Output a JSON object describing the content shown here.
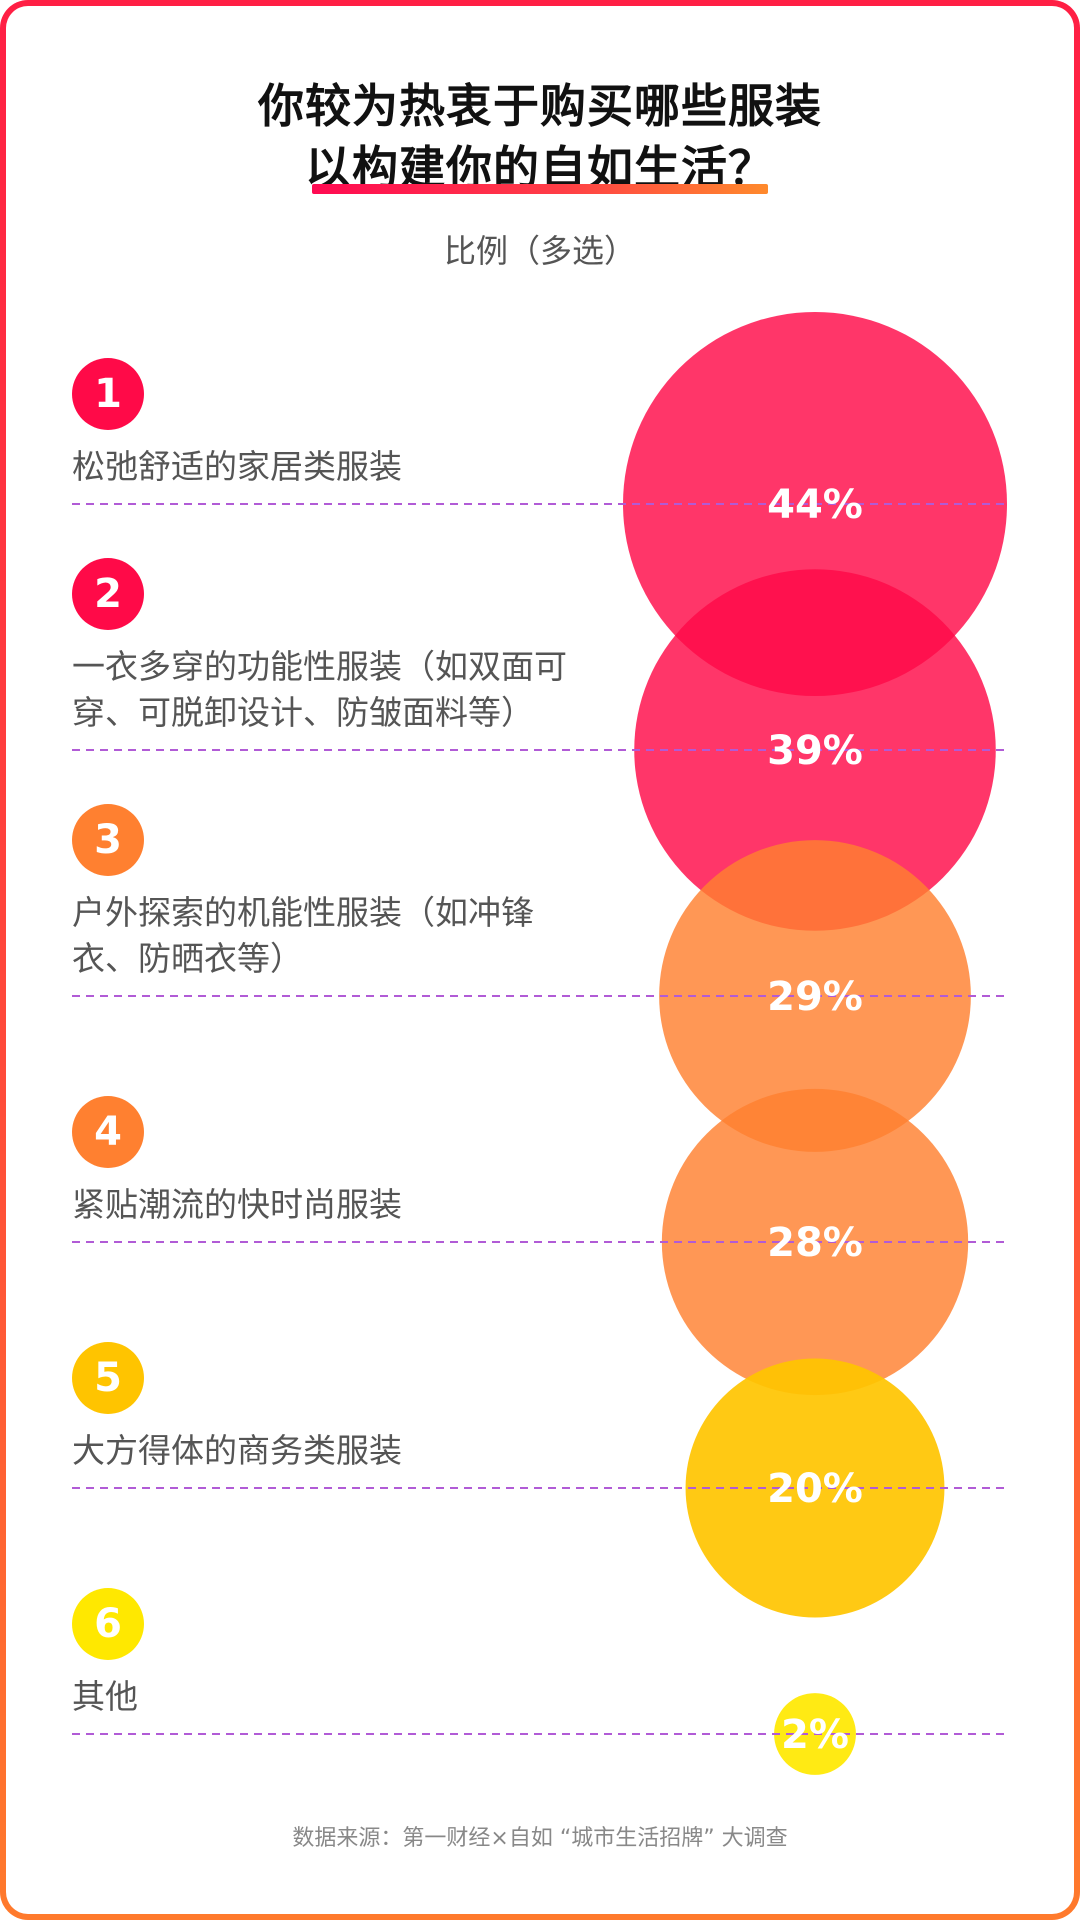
{
  "title": {
    "line1": "你较为热衷于购买哪些服装",
    "line2": "以构建你的自如生活？"
  },
  "subtitle": "比例（多选）",
  "footer": "数据来源：第一财经×自如 “城市生活招牌” 大调查",
  "colors": {
    "red": "#ff0a48",
    "orange": "#ff8030",
    "amber": "#ffc400",
    "yellow": "#ffe800",
    "dash": "#b15bd6",
    "frame": "#ff3344"
  },
  "chart_data": {
    "type": "bubble",
    "categories": [
      "松弛舒适的家居类服装",
      "一衣多穿的功能性服装（如双面可穿、可脱卸设计、防皱面料等）",
      "户外探索的机能性服装（如冲锋衣、防晒衣等）",
      "紧贴潮流的快时尚服装",
      "大方得体的商务类服装",
      "其他"
    ],
    "values": [
      44,
      39,
      29,
      28,
      20,
      2
    ],
    "value_labels": [
      "44%",
      "39%",
      "29%",
      "28%",
      "20%",
      "2%"
    ],
    "ranks": [
      "1",
      "2",
      "3",
      "4",
      "5",
      "6"
    ],
    "label_lines": [
      [
        "松弛舒适的家居类服装"
      ],
      [
        "一衣多穿的功能性服装（如双面可",
        "穿、可脱卸设计、防皱面料等）"
      ],
      [
        "户外探索的机能性服装（如冲锋",
        "衣、防晒衣等）"
      ],
      [
        "紧贴潮流的快时尚服装"
      ],
      [
        "大方得体的商务类服装"
      ],
      [
        "其他"
      ]
    ],
    "point_colors": [
      "#ff0a48",
      "#ff0a48",
      "#ff8030",
      "#ff8030",
      "#ffc400",
      "#ffe800"
    ]
  }
}
